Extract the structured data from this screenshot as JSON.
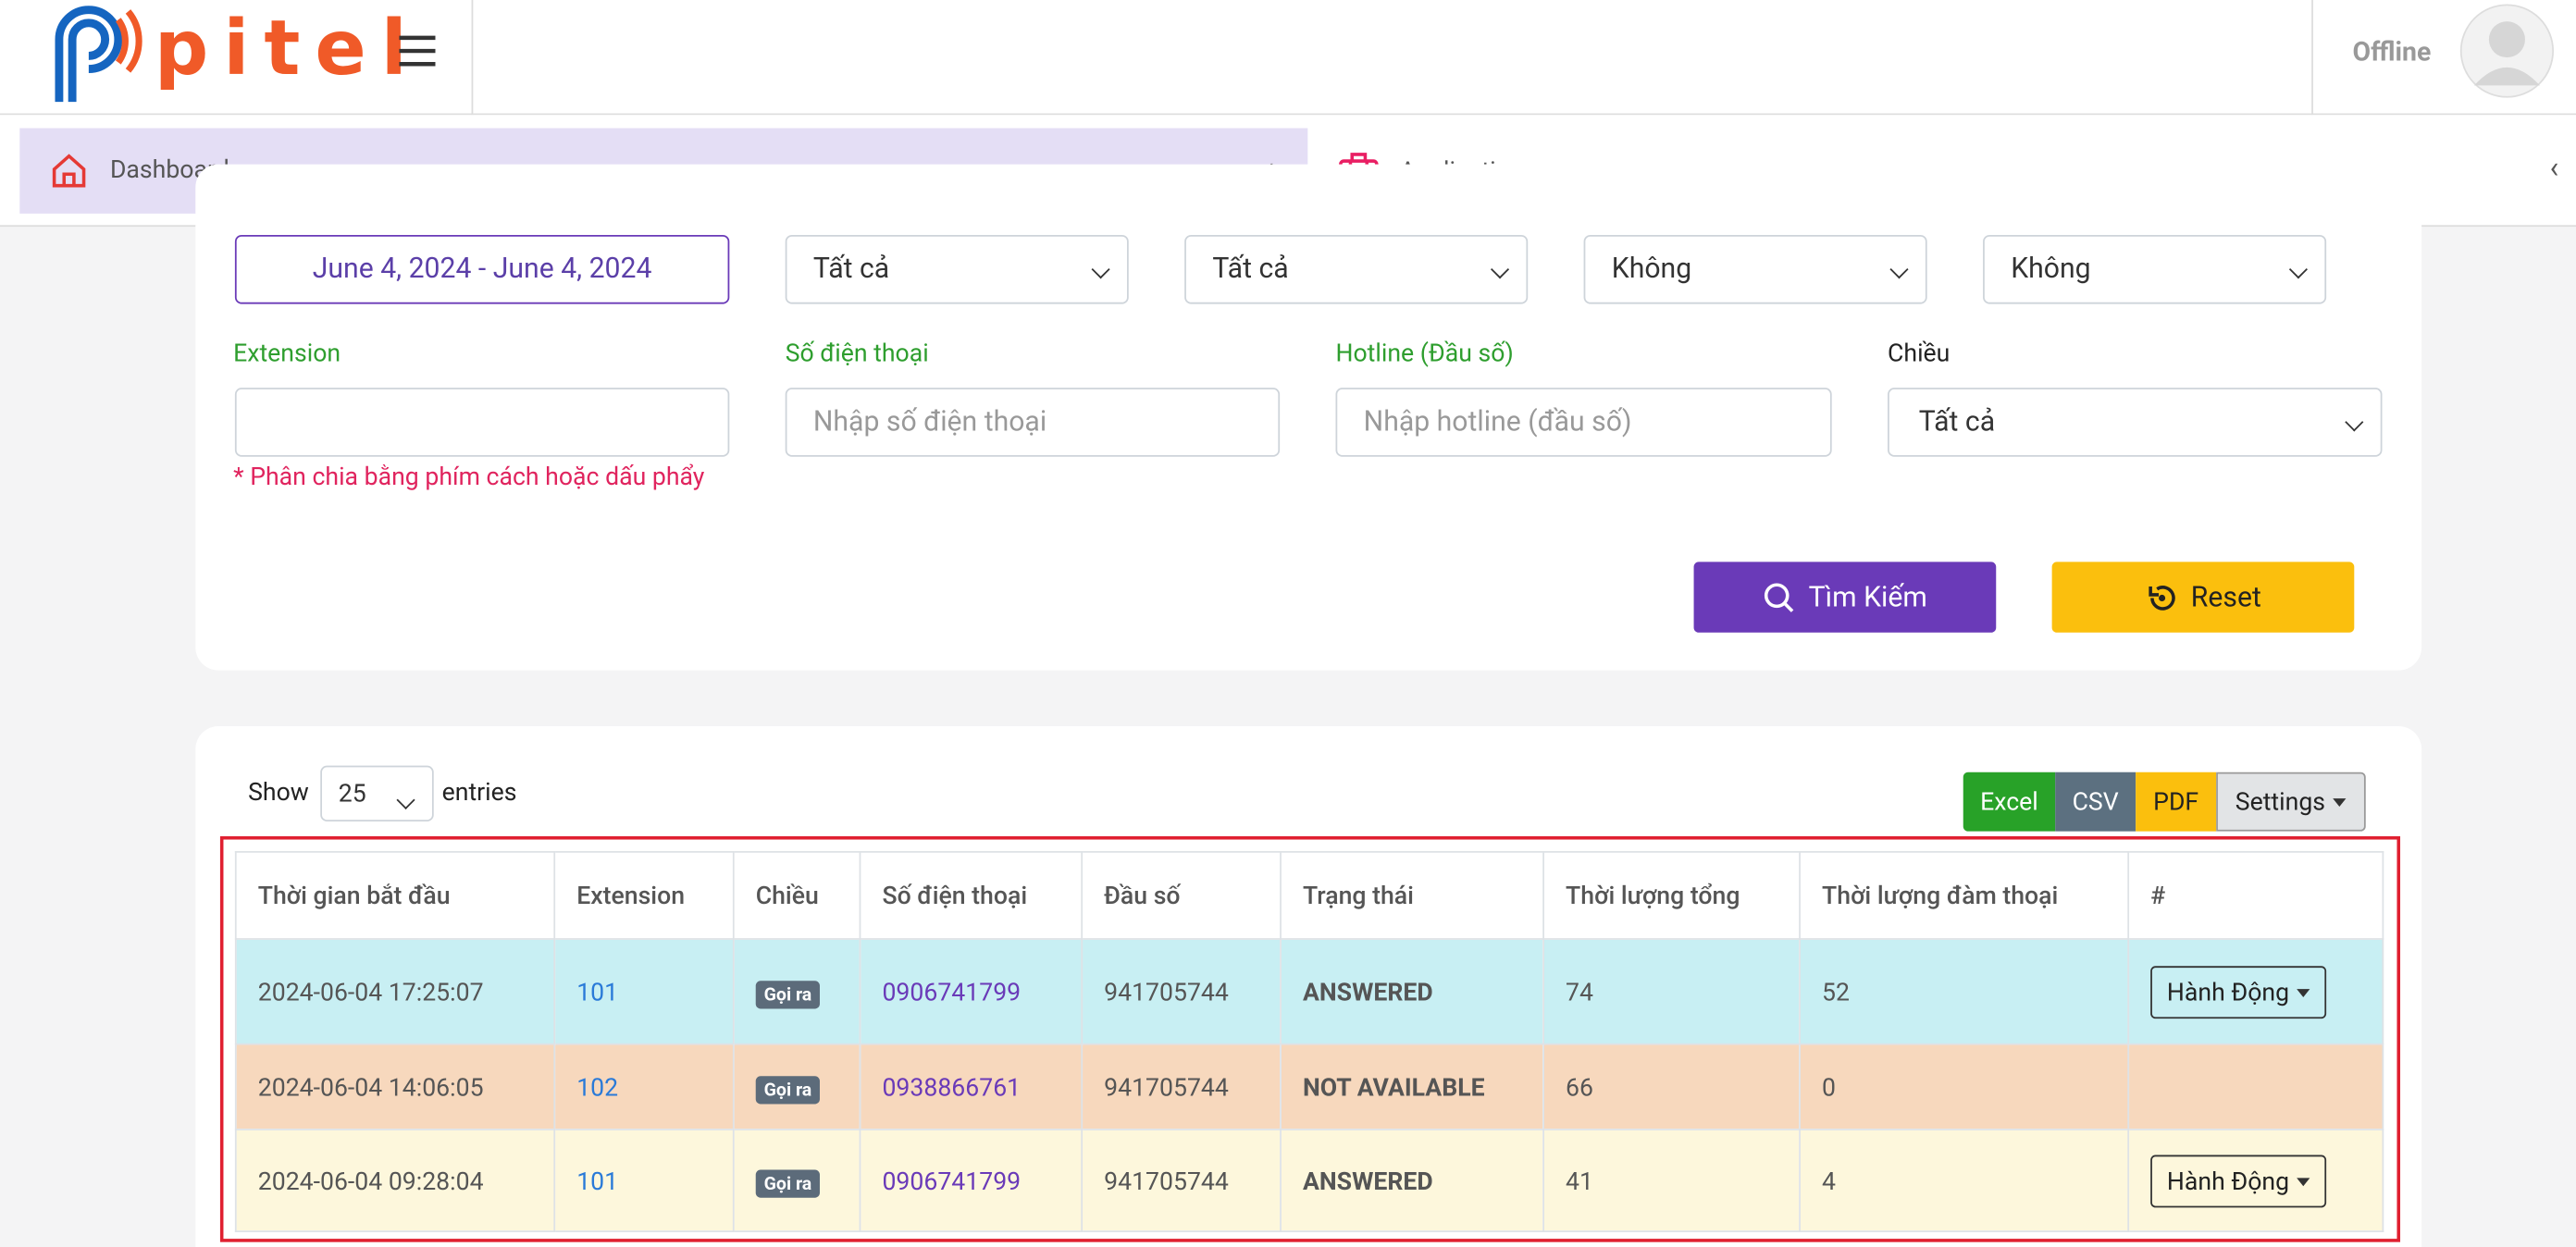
{
  "header": {
    "logo": "pitel",
    "status": "Offline"
  },
  "nav": {
    "items": [
      "Dashboard",
      "Applications"
    ]
  },
  "filters": {
    "date_range": "June 4, 2024 - June 4, 2024",
    "selects": [
      "Tất cả",
      "Tất cả",
      "Không",
      "Không"
    ],
    "extension": {
      "label": "Extension",
      "hint": "* Phân chia bằng phím cách hoặc dấu phẩy"
    },
    "phone": {
      "label": "Số điện thoại",
      "placeholder": "Nhập số điện thoại"
    },
    "hotline": {
      "label": "Hotline (Đầu số)",
      "placeholder": "Nhập hotline (đầu số)"
    },
    "direction": {
      "label": "Chiều",
      "value": "Tất cả"
    },
    "search_button": "Tìm Kiếm",
    "reset_button": "Reset"
  },
  "table": {
    "show": "Show",
    "page_size": "25",
    "entries": "entries",
    "exports": [
      "Excel",
      "CSV",
      "PDF",
      "Settings"
    ],
    "columns": [
      "Thời gian bắt đầu",
      "Extension",
      "Chiều",
      "Số điện thoại",
      "Đầu số",
      "Trạng thái",
      "Thời lượng tổng",
      "Thời lượng đàm thoại",
      "#"
    ],
    "rows": [
      [
        "2024-06-04 17:25:07",
        "101",
        "Gọi ra",
        "0906741799",
        "941705744",
        "ANSWERED",
        "74",
        "52",
        "Hành Động"
      ],
      [
        "2024-06-04 14:06:05",
        "102",
        "Gọi ra",
        "0938866761",
        "941705744",
        "NOT AVAILABLE",
        "66",
        "0"
      ],
      [
        "2024-06-04 09:28:04",
        "101",
        "Gọi ra",
        "0906741799",
        "941705744",
        "ANSWERED",
        "41",
        "4",
        "Hành Động"
      ]
    ]
  }
}
